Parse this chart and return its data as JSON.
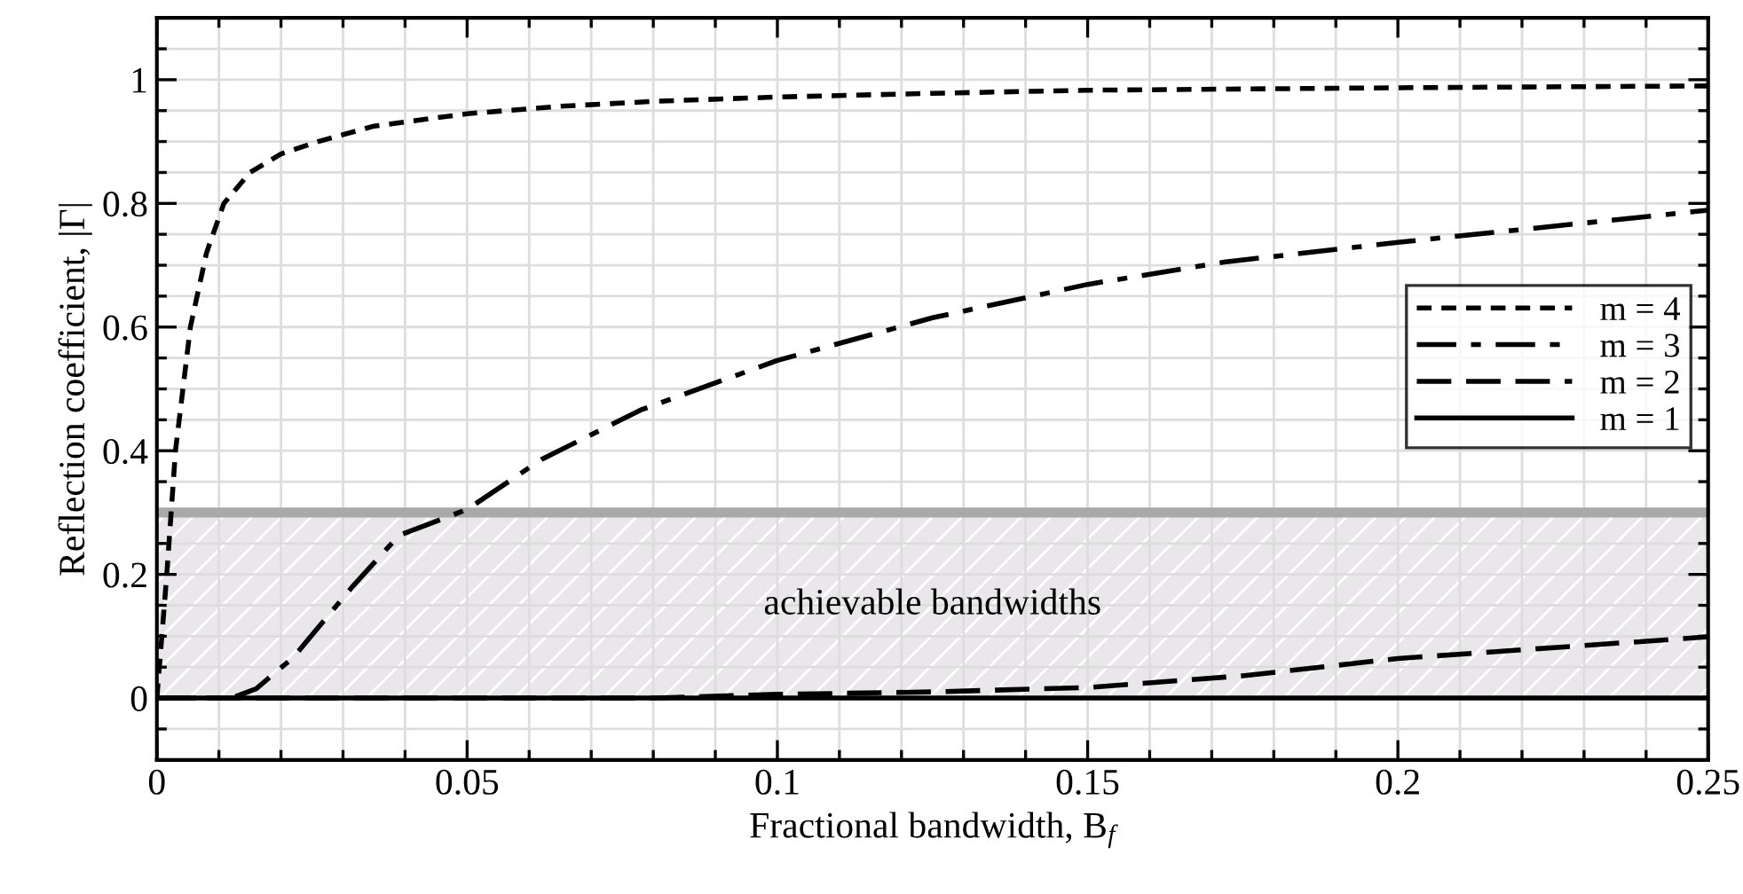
{
  "chart_data": {
    "type": "line",
    "xlabel": "Fractional bandwidth, B$_{f}$",
    "ylabel": "Reflection coefficient, |Γ|",
    "xlim": [
      0,
      0.25
    ],
    "xticks": [
      0,
      0.05,
      0.1,
      0.15,
      0.2,
      0.25
    ],
    "ylim": [
      -0.1,
      1.1
    ],
    "yticks": [
      0,
      0.2,
      0.4,
      0.6,
      0.8,
      1
    ],
    "grid": true,
    "legend": "right",
    "series": [
      {
        "name": "m = 4",
        "color": "#000000",
        "line_style": "dotted",
        "x": [
          0,
          0.0008,
          0.0016,
          0.003,
          0.0054,
          0.008,
          0.0108,
          0.015,
          0.02,
          0.026,
          0.035,
          0.05,
          0.065,
          0.08,
          0.1,
          0.125,
          0.15,
          0.2,
          0.25
        ],
        "values": [
          0,
          0.1,
          0.2,
          0.4,
          0.6,
          0.72,
          0.8,
          0.85,
          0.88,
          0.9,
          0.925,
          0.945,
          0.957,
          0.965,
          0.972,
          0.978,
          0.983,
          0.987,
          0.99
        ]
      },
      {
        "name": "m = 3",
        "color": "#000000",
        "line_style": "dashdot",
        "x": [
          0,
          0.012,
          0.016,
          0.022,
          0.0315,
          0.039,
          0.05,
          0.062,
          0.078,
          0.1,
          0.125,
          0.15,
          0.172,
          0.2,
          0.25
        ],
        "values": [
          0,
          0,
          0.015,
          0.066,
          0.18,
          0.263,
          0.305,
          0.386,
          0.466,
          0.546,
          0.615,
          0.669,
          0.705,
          0.737,
          0.789
        ]
      },
      {
        "name": "m = 2",
        "color": "#000000",
        "line_style": "dashed",
        "x": [
          0,
          0.08,
          0.1,
          0.125,
          0.15,
          0.175,
          0.2,
          0.25
        ],
        "values": [
          0,
          0,
          0.006,
          0.01,
          0.017,
          0.036,
          0.064,
          0.099
        ]
      },
      {
        "name": "m = 1",
        "color": "#000000",
        "line_style": "solid",
        "x": [
          0,
          0.25
        ],
        "values": [
          0,
          0
        ]
      }
    ],
    "bands": [
      {
        "axis": "y",
        "from": 0,
        "to": 0.3,
        "label": "achievable bandwidths",
        "color": "#e9e7e9"
      }
    ],
    "ref_lines": [
      {
        "axis": "y",
        "value": 0.3,
        "color": "#a9a9a9"
      }
    ]
  }
}
